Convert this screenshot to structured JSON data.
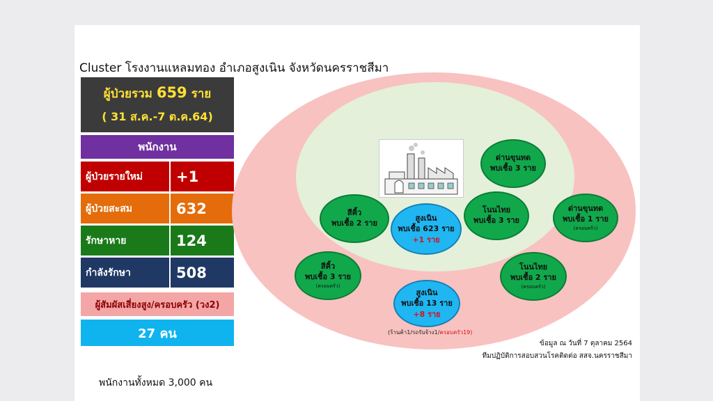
{
  "title": "Cluster โรงงานแหลมทอง อำเภอสูงเนิน จังหวัดนครราชสีมา",
  "total": {
    "prefix": "ผู้ป่วยรวม",
    "count": "659",
    "suffix": "ราย",
    "date_range": "( 31 ส.ค.-7 ต.ค.64)"
  },
  "employees": {
    "header": "พนักงาน",
    "rows": [
      {
        "label": "ผู้ป่วยรายใหม่",
        "value": "+1",
        "color": "#c00000"
      },
      {
        "label": "ผู้ป่วยสะสม",
        "value": "632",
        "color": "#e46c0a"
      },
      {
        "label": "รักษาหาย",
        "value": "124",
        "color": "#1a7a1a"
      },
      {
        "label": "กำลังรักษา",
        "value": "508",
        "color": "#1f3864"
      }
    ]
  },
  "contacts": {
    "header": "ผู้สัมผัสเสี่ยงสูง/ครอบครัว (วง2)",
    "value": "27 คน"
  },
  "circles": {
    "dankhunthot_1": {
      "name": "ด่านขุนทด",
      "found": "พบเชื้อ 3 ราย"
    },
    "sikhio_1": {
      "name": "สีคิ้ว",
      "found": "พบเชื้อ 2 ราย"
    },
    "sungnoen_1": {
      "name": "สูงเนิน",
      "found": "พบเชื้อ 623 ราย",
      "new": "+1 ราย"
    },
    "nonthai_1": {
      "name": "โนนไทย",
      "found": "พบเชื้อ 3 ราย"
    },
    "dankhunthot_2": {
      "name": "ด่านขุนทด",
      "found": "พบเชื้อ 1 ราย",
      "note": "(ครอบครัว)"
    },
    "sikhio_2": {
      "name": "สีคิ้ว",
      "found": "พบเชื้อ 3 ราย",
      "note": "(ครอบครัว)"
    },
    "sungnoen_2": {
      "name": "สูงเนิน",
      "found": "พบเชื้อ 13 ราย",
      "new": "+8 ราย"
    },
    "nonthai_2": {
      "name": "โนนไทย",
      "found": "พบเชื้อ 2 ราย",
      "note": "(ครอบครัว)"
    }
  },
  "sungnoen_caption": {
    "part1": "(ร้านค้า1/รถรับจ้าง1/",
    "part2": "ครอบครัว19)"
  },
  "source": {
    "line1": "ข้อมูล ณ วันที่ 7 ตุลาคม 2564",
    "line2": "ทีมปฏิบัติการสอบสวนโรคติดต่อ สสจ.นครราชสีมา"
  },
  "footer": "พนักงานทั้งหมด 3,000 คน"
}
